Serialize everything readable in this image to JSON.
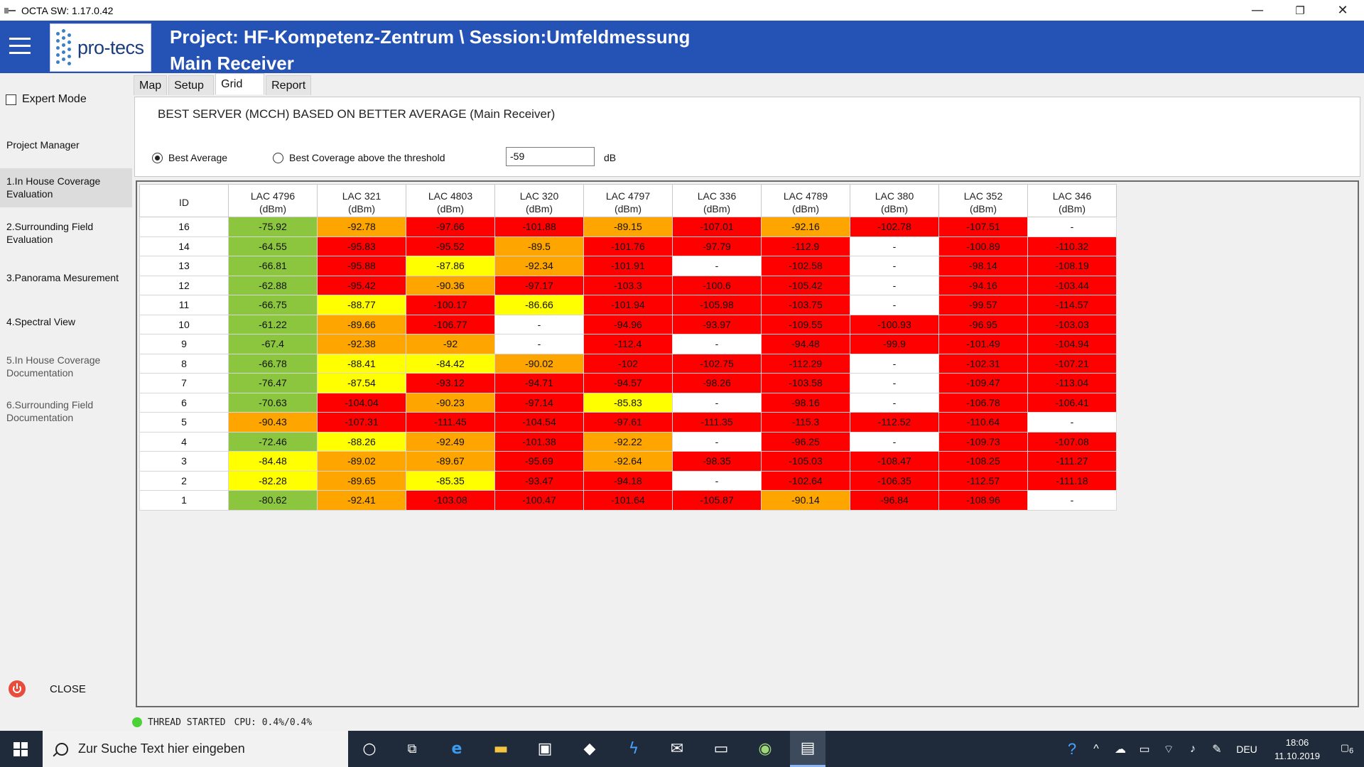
{
  "window": {
    "title": "OCTA SW: 1.17.0.42",
    "controls": {
      "minimize": "—",
      "restore": "❐",
      "close": "✕"
    }
  },
  "header": {
    "logo_text": "pro-tecs",
    "title_line1": "Project: HF-Kompetenz-Zentrum \\ Session:Umfeldmessung",
    "title_line2": "Main Receiver",
    "bg_color": "#2452b5"
  },
  "sidebar": {
    "expert_mode_label": "Expert Mode",
    "items": [
      {
        "label": "Project Manager"
      },
      {
        "label": "1.In House Coverage Evaluation"
      },
      {
        "label": "2.Surrounding Field Evaluation"
      },
      {
        "label": "3.Panorama Mesurement"
      },
      {
        "label": "4.Spectral View"
      },
      {
        "label": "5.In House Coverage Documentation"
      },
      {
        "label": "6.Surrounding Field Documentation"
      }
    ],
    "close_label": "CLOSE"
  },
  "tabs": [
    {
      "label": "Map"
    },
    {
      "label": "Setup"
    },
    {
      "label": "Grid"
    },
    {
      "label": "Report"
    }
  ],
  "panel": {
    "heading": "BEST SERVER (MCCH) BASED ON BETTER AVERAGE (Main Receiver)",
    "radio_best_average": "Best Average",
    "radio_best_coverage": "Best Coverage above the threshold",
    "threshold_value": "-59",
    "threshold_unit": "dB"
  },
  "grid": {
    "id_header": "ID",
    "columns": [
      {
        "lac": "LAC 4796",
        "unit": "(dBm)"
      },
      {
        "lac": "LAC 321",
        "unit": "(dBm)"
      },
      {
        "lac": "LAC 4803",
        "unit": "(dBm)"
      },
      {
        "lac": "LAC 320",
        "unit": "(dBm)"
      },
      {
        "lac": "LAC 4797",
        "unit": "(dBm)"
      },
      {
        "lac": "LAC 336",
        "unit": "(dBm)"
      },
      {
        "lac": "LAC 4789",
        "unit": "(dBm)"
      },
      {
        "lac": "LAC 380",
        "unit": "(dBm)"
      },
      {
        "lac": "LAC 352",
        "unit": "(dBm)"
      },
      {
        "lac": "LAC 346",
        "unit": "(dBm)"
      }
    ],
    "colors": {
      "g": "#8cc63f",
      "y": "#ffff00",
      "o": "#ffa500",
      "r": "#ff0000",
      "w": "#ffffff"
    },
    "rows": [
      {
        "id": "16",
        "cells": [
          [
            "-75.92",
            "g"
          ],
          [
            "-92.78",
            "o"
          ],
          [
            "-97.66",
            "r"
          ],
          [
            "-101.88",
            "r"
          ],
          [
            "-89.15",
            "o"
          ],
          [
            "-107.01",
            "r"
          ],
          [
            "-92.16",
            "o"
          ],
          [
            "-102.78",
            "r"
          ],
          [
            "-107.51",
            "r"
          ],
          [
            "-",
            "w"
          ]
        ]
      },
      {
        "id": "14",
        "cells": [
          [
            "-64.55",
            "g"
          ],
          [
            "-95.83",
            "r"
          ],
          [
            "-95.52",
            "r"
          ],
          [
            "-89.5",
            "o"
          ],
          [
            "-101.76",
            "r"
          ],
          [
            "-97.79",
            "r"
          ],
          [
            "-112.9",
            "r"
          ],
          [
            "-",
            "w"
          ],
          [
            "-100.89",
            "r"
          ],
          [
            "-110.32",
            "r"
          ]
        ]
      },
      {
        "id": "13",
        "cells": [
          [
            "-66.81",
            "g"
          ],
          [
            "-95.88",
            "r"
          ],
          [
            "-87.86",
            "y"
          ],
          [
            "-92.34",
            "o"
          ],
          [
            "-101.91",
            "r"
          ],
          [
            "-",
            "w"
          ],
          [
            "-102.58",
            "r"
          ],
          [
            "-",
            "w"
          ],
          [
            "-98.14",
            "r"
          ],
          [
            "-108.19",
            "r"
          ]
        ]
      },
      {
        "id": "12",
        "cells": [
          [
            "-62.88",
            "g"
          ],
          [
            "-95.42",
            "r"
          ],
          [
            "-90.36",
            "o"
          ],
          [
            "-97.17",
            "r"
          ],
          [
            "-103.3",
            "r"
          ],
          [
            "-100.6",
            "r"
          ],
          [
            "-105.42",
            "r"
          ],
          [
            "-",
            "w"
          ],
          [
            "-94.16",
            "r"
          ],
          [
            "-103.44",
            "r"
          ]
        ]
      },
      {
        "id": "11",
        "cells": [
          [
            "-66.75",
            "g"
          ],
          [
            "-88.77",
            "y"
          ],
          [
            "-100.17",
            "r"
          ],
          [
            "-86.66",
            "y"
          ],
          [
            "-101.94",
            "r"
          ],
          [
            "-105.98",
            "r"
          ],
          [
            "-103.75",
            "r"
          ],
          [
            "-",
            "w"
          ],
          [
            "-99.57",
            "r"
          ],
          [
            "-114.57",
            "r"
          ]
        ]
      },
      {
        "id": "10",
        "cells": [
          [
            "-61.22",
            "g"
          ],
          [
            "-89.66",
            "o"
          ],
          [
            "-106.77",
            "r"
          ],
          [
            "-",
            "w"
          ],
          [
            "-94.96",
            "r"
          ],
          [
            "-93.97",
            "r"
          ],
          [
            "-109.55",
            "r"
          ],
          [
            "-100.93",
            "r"
          ],
          [
            "-96.95",
            "r"
          ],
          [
            "-103.03",
            "r"
          ]
        ]
      },
      {
        "id": "9",
        "cells": [
          [
            "-67.4",
            "g"
          ],
          [
            "-92.38",
            "o"
          ],
          [
            "-92",
            "o"
          ],
          [
            "-",
            "w"
          ],
          [
            "-112.4",
            "r"
          ],
          [
            "-",
            "w"
          ],
          [
            "-94.48",
            "r"
          ],
          [
            "-99.9",
            "r"
          ],
          [
            "-101.49",
            "r"
          ],
          [
            "-104.94",
            "r"
          ]
        ]
      },
      {
        "id": "8",
        "cells": [
          [
            "-66.78",
            "g"
          ],
          [
            "-88.41",
            "y"
          ],
          [
            "-84.42",
            "y"
          ],
          [
            "-90.02",
            "o"
          ],
          [
            "-102",
            "r"
          ],
          [
            "-102.75",
            "r"
          ],
          [
            "-112.29",
            "r"
          ],
          [
            "-",
            "w"
          ],
          [
            "-102.31",
            "r"
          ],
          [
            "-107.21",
            "r"
          ]
        ]
      },
      {
        "id": "7",
        "cells": [
          [
            "-76.47",
            "g"
          ],
          [
            "-87.54",
            "y"
          ],
          [
            "-93.12",
            "r"
          ],
          [
            "-94.71",
            "r"
          ],
          [
            "-94.57",
            "r"
          ],
          [
            "-98.26",
            "r"
          ],
          [
            "-103.58",
            "r"
          ],
          [
            "-",
            "w"
          ],
          [
            "-109.47",
            "r"
          ],
          [
            "-113.04",
            "r"
          ]
        ]
      },
      {
        "id": "6",
        "cells": [
          [
            "-70.63",
            "g"
          ],
          [
            "-104.04",
            "r"
          ],
          [
            "-90.23",
            "o"
          ],
          [
            "-97.14",
            "r"
          ],
          [
            "-85.83",
            "y"
          ],
          [
            "-",
            "w"
          ],
          [
            "-98.16",
            "r"
          ],
          [
            "-",
            "w"
          ],
          [
            "-106.78",
            "r"
          ],
          [
            "-106.41",
            "r"
          ]
        ]
      },
      {
        "id": "5",
        "cells": [
          [
            "-90.43",
            "o"
          ],
          [
            "-107.31",
            "r"
          ],
          [
            "-111.45",
            "r"
          ],
          [
            "-104.54",
            "r"
          ],
          [
            "-97.61",
            "r"
          ],
          [
            "-111.35",
            "r"
          ],
          [
            "-115.3",
            "r"
          ],
          [
            "-112.52",
            "r"
          ],
          [
            "-110.64",
            "r"
          ],
          [
            "-",
            "w"
          ]
        ]
      },
      {
        "id": "4",
        "cells": [
          [
            "-72.46",
            "g"
          ],
          [
            "-88.26",
            "y"
          ],
          [
            "-92.49",
            "o"
          ],
          [
            "-101.38",
            "r"
          ],
          [
            "-92.22",
            "o"
          ],
          [
            "-",
            "w"
          ],
          [
            "-96.25",
            "r"
          ],
          [
            "-",
            "w"
          ],
          [
            "-109.73",
            "r"
          ],
          [
            "-107.08",
            "r"
          ]
        ]
      },
      {
        "id": "3",
        "cells": [
          [
            "-84.48",
            "y"
          ],
          [
            "-89.02",
            "o"
          ],
          [
            "-89.67",
            "o"
          ],
          [
            "-95.69",
            "r"
          ],
          [
            "-92.64",
            "o"
          ],
          [
            "-98.35",
            "r"
          ],
          [
            "-105.03",
            "r"
          ],
          [
            "-108.47",
            "r"
          ],
          [
            "-108.25",
            "r"
          ],
          [
            "-111.27",
            "r"
          ]
        ]
      },
      {
        "id": "2",
        "cells": [
          [
            "-82.28",
            "y"
          ],
          [
            "-89.65",
            "o"
          ],
          [
            "-85.35",
            "y"
          ],
          [
            "-93.47",
            "r"
          ],
          [
            "-94.18",
            "r"
          ],
          [
            "-",
            "w"
          ],
          [
            "-102.64",
            "r"
          ],
          [
            "-106.35",
            "r"
          ],
          [
            "-112.57",
            "r"
          ],
          [
            "-111.18",
            "r"
          ]
        ]
      },
      {
        "id": "1",
        "cells": [
          [
            "-80.62",
            "g"
          ],
          [
            "-92.41",
            "o"
          ],
          [
            "-103.08",
            "r"
          ],
          [
            "-100.47",
            "r"
          ],
          [
            "-101.64",
            "r"
          ],
          [
            "-105.87",
            "r"
          ],
          [
            "-90.14",
            "o"
          ],
          [
            "-96.84",
            "r"
          ],
          [
            "-108.96",
            "r"
          ],
          [
            "-",
            "w"
          ]
        ]
      }
    ]
  },
  "status": {
    "thread": "THREAD STARTED",
    "cpu": "CPU: 0.4%/0.4%"
  },
  "taskbar": {
    "search_placeholder": "Zur Suche Text hier eingeben",
    "language": "DEU",
    "time": "18:06",
    "date": "11.10.2019",
    "notification_count": "6"
  }
}
